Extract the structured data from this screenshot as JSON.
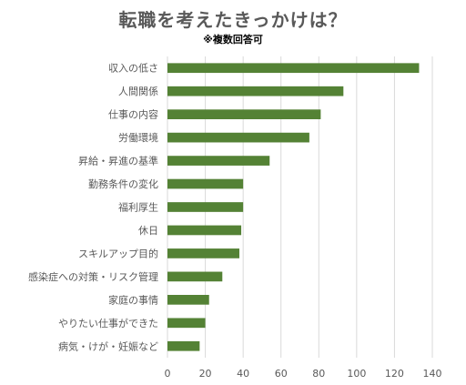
{
  "chart_data": {
    "type": "bar",
    "orientation": "horizontal",
    "title": "転職を考えたきっかけは？",
    "subtitle": "※複数回答可",
    "categories": [
      "収入の低さ",
      "人間関係",
      "仕事の内容",
      "労働環境",
      "昇給・昇進の基準",
      "勤務条件の変化",
      "福利厚生",
      "休日",
      "スキルアップ目的",
      "感染症への対策・リスク管理",
      "家庭の事情",
      "やりたい仕事ができた",
      "病気・けが・妊娠など"
    ],
    "values": [
      133,
      93,
      81,
      75,
      54,
      40,
      40,
      39,
      38,
      29,
      22,
      20,
      17
    ],
    "xlim": [
      0,
      140
    ],
    "xticks": [
      0,
      20,
      40,
      60,
      80,
      100,
      120,
      140
    ],
    "grid": true,
    "legend": "none",
    "bar_color": "#548235",
    "grid_color": "#d9d9d9"
  }
}
